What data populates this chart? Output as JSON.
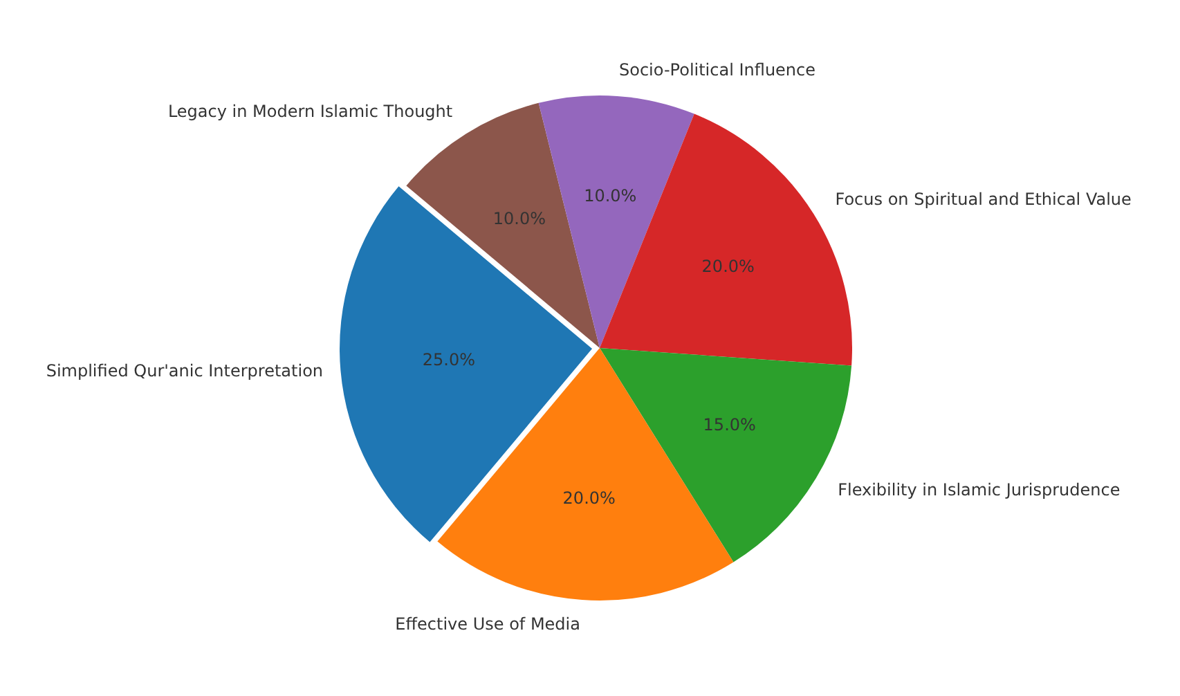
{
  "chart_data": {
    "type": "pie",
    "categories": [
      "Simplified Qur'anic Interpretation",
      "Effective Use of Media",
      "Flexibility in Islamic Jurisprudence",
      "Focus on Spiritual and Ethical Value",
      "Socio-Political Influence",
      "Legacy in Modern Islamic Thought"
    ],
    "values": [
      25,
      20,
      15,
      20,
      10,
      10
    ],
    "colors": [
      "#1f77b4",
      "#ff7f0e",
      "#2ca02c",
      "#d62728",
      "#9467bd",
      "#8c564b"
    ],
    "value_labels": [
      "25.0%",
      "20.0%",
      "15.0%",
      "20.0%",
      "10.0%",
      "10.0%"
    ],
    "legend": false
  }
}
